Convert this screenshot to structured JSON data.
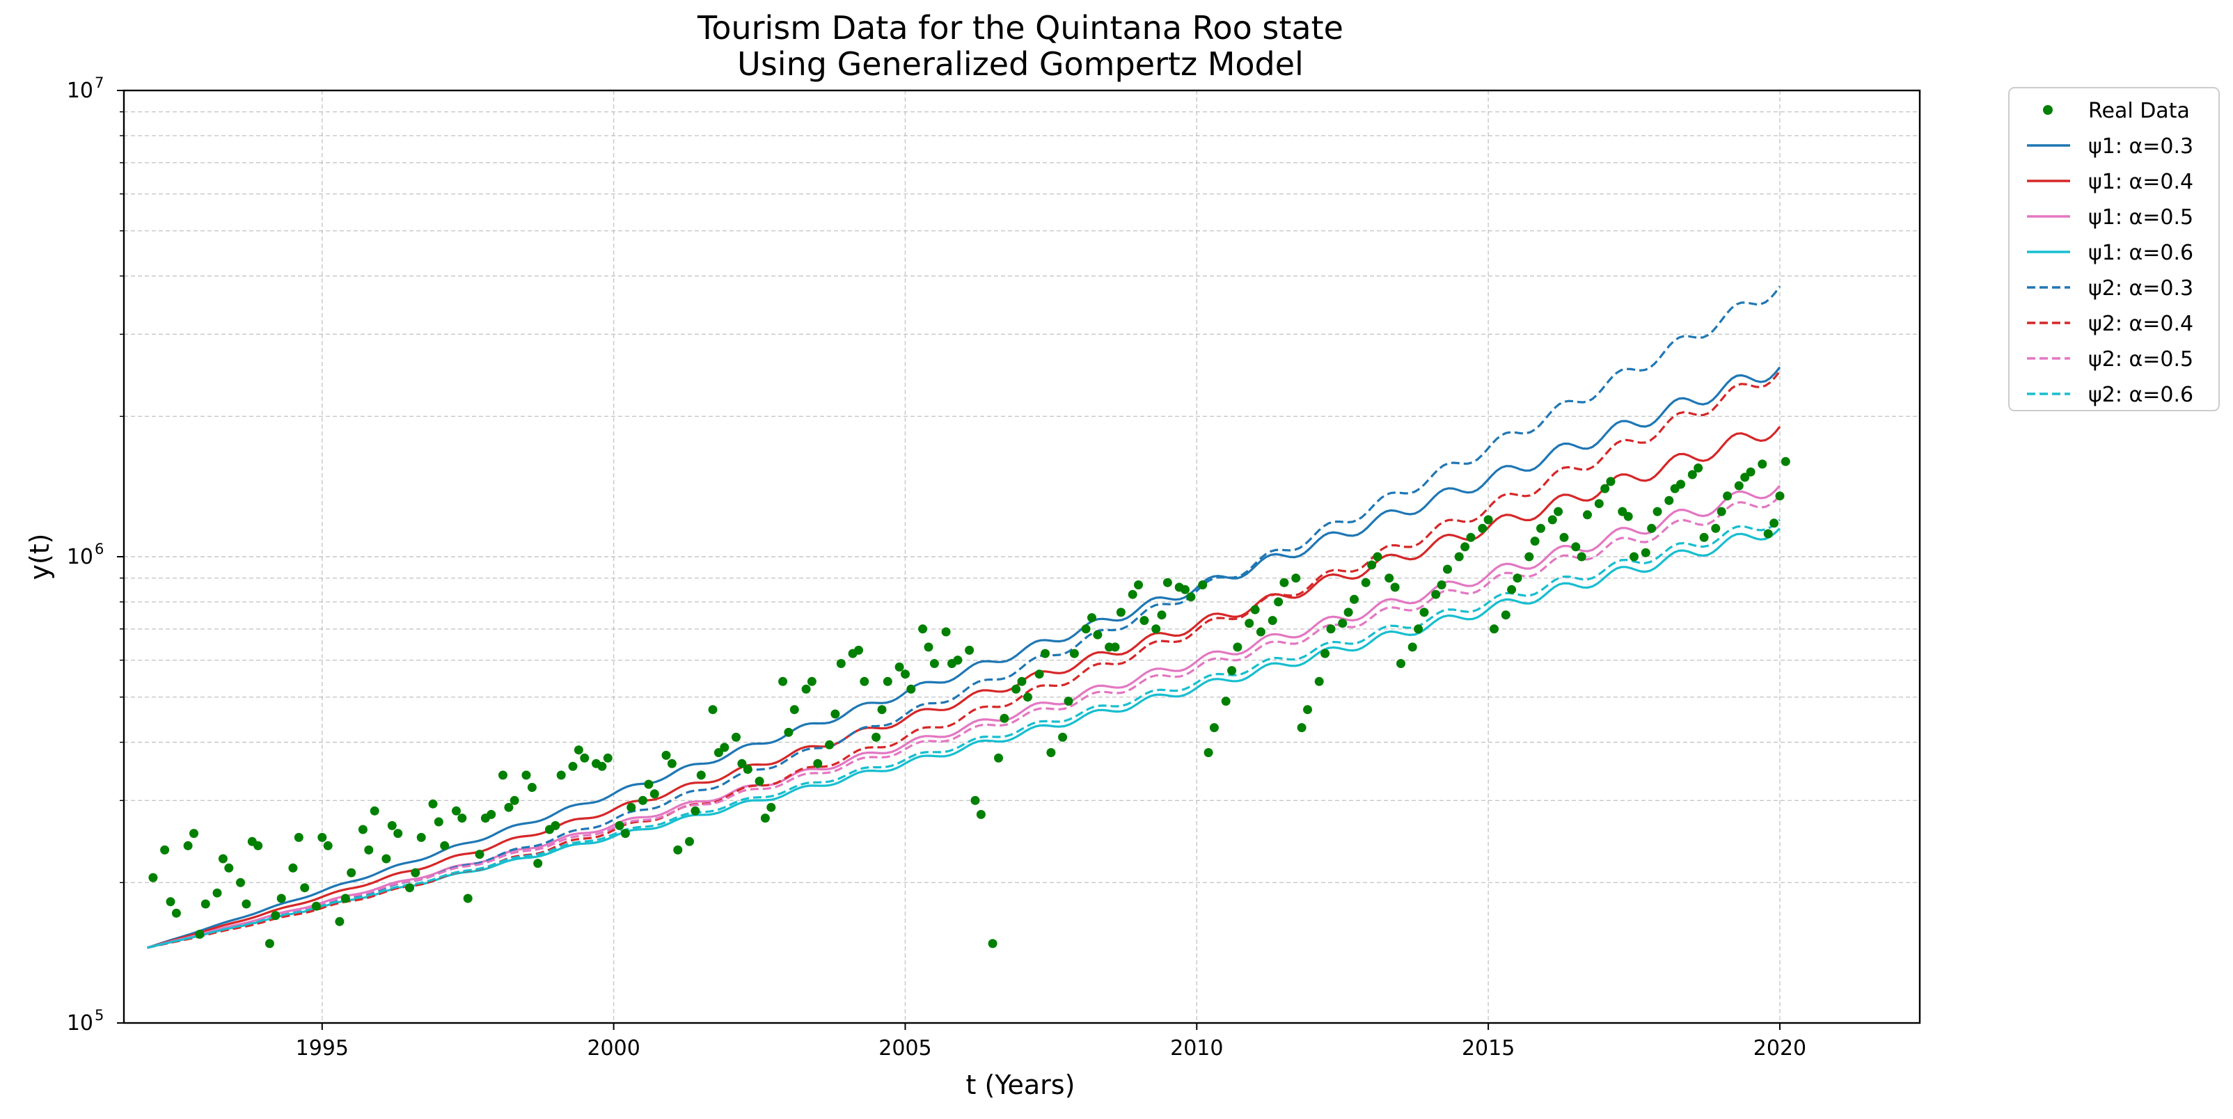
{
  "chart_data": {
    "type": "line",
    "title": "Tourism Data for the Quintana Roo state",
    "subtitle": "Using Generalized Gompertz Model",
    "xlabel": "t (Years)",
    "ylabel": "y(t)",
    "xlim": [
      1991.6,
      2022.4
    ],
    "ylim": [
      100000,
      10000000
    ],
    "yscale": "log",
    "grid": true,
    "legend_position": "outside-right-top",
    "x_ticks": [
      1995,
      2000,
      2005,
      2010,
      2015,
      2020
    ],
    "x_tick_labels": [
      "1995",
      "2000",
      "2005",
      "2010",
      "2015",
      "2020"
    ],
    "y_ticks": [
      {
        "value": 100000,
        "base": "10",
        "exp": "5"
      },
      {
        "value": 1000000,
        "base": "10",
        "exp": "6"
      },
      {
        "value": 10000000,
        "base": "10",
        "exp": "7"
      }
    ],
    "scatter": {
      "name": "Real Data",
      "color": "#008000",
      "points": [
        [
          1992.1,
          205000
        ],
        [
          1992.3,
          235000
        ],
        [
          1992.4,
          182000
        ],
        [
          1992.5,
          172000
        ],
        [
          1992.7,
          240000
        ],
        [
          1992.8,
          255000
        ],
        [
          1992.9,
          155000
        ],
        [
          1993.0,
          180000
        ],
        [
          1993.2,
          190000
        ],
        [
          1993.3,
          225000
        ],
        [
          1993.4,
          215000
        ],
        [
          1993.6,
          200000
        ],
        [
          1993.7,
          180000
        ],
        [
          1993.8,
          245000
        ],
        [
          1993.9,
          240000
        ],
        [
          1994.1,
          148000
        ],
        [
          1994.2,
          170000
        ],
        [
          1994.3,
          185000
        ],
        [
          1994.5,
          215000
        ],
        [
          1994.6,
          250000
        ],
        [
          1994.7,
          195000
        ],
        [
          1994.9,
          178000
        ],
        [
          1995.0,
          250000
        ],
        [
          1995.1,
          240000
        ],
        [
          1995.3,
          165000
        ],
        [
          1995.4,
          185000
        ],
        [
          1995.5,
          210000
        ],
        [
          1995.7,
          260000
        ],
        [
          1995.8,
          235000
        ],
        [
          1995.9,
          285000
        ],
        [
          1996.1,
          225000
        ],
        [
          1996.2,
          265000
        ],
        [
          1996.3,
          255000
        ],
        [
          1996.5,
          195000
        ],
        [
          1996.6,
          210000
        ],
        [
          1996.7,
          250000
        ],
        [
          1996.9,
          295000
        ],
        [
          1997.0,
          270000
        ],
        [
          1997.1,
          240000
        ],
        [
          1997.3,
          285000
        ],
        [
          1997.4,
          275000
        ],
        [
          1997.5,
          185000
        ],
        [
          1997.7,
          230000
        ],
        [
          1997.8,
          275000
        ],
        [
          1997.9,
          280000
        ],
        [
          1998.1,
          340000
        ],
        [
          1998.2,
          290000
        ],
        [
          1998.3,
          300000
        ],
        [
          1998.5,
          340000
        ],
        [
          1998.6,
          320000
        ],
        [
          1998.7,
          220000
        ],
        [
          1998.9,
          260000
        ],
        [
          1999.0,
          265000
        ],
        [
          1999.1,
          340000
        ],
        [
          1999.3,
          355000
        ],
        [
          1999.4,
          385000
        ],
        [
          1999.5,
          370000
        ],
        [
          1999.7,
          360000
        ],
        [
          1999.8,
          355000
        ],
        [
          1999.9,
          370000
        ],
        [
          2000.1,
          265000
        ],
        [
          2000.2,
          255000
        ],
        [
          2000.3,
          290000
        ],
        [
          2000.5,
          300000
        ],
        [
          2000.6,
          325000
        ],
        [
          2000.7,
          310000
        ],
        [
          2000.9,
          375000
        ],
        [
          2001.0,
          360000
        ],
        [
          2001.1,
          235000
        ],
        [
          2001.3,
          245000
        ],
        [
          2001.4,
          285000
        ],
        [
          2001.5,
          340000
        ],
        [
          2001.7,
          470000
        ],
        [
          2001.8,
          380000
        ],
        [
          2001.9,
          390000
        ],
        [
          2002.1,
          410000
        ],
        [
          2002.2,
          360000
        ],
        [
          2002.3,
          350000
        ],
        [
          2002.5,
          330000
        ],
        [
          2002.6,
          275000
        ],
        [
          2002.7,
          290000
        ],
        [
          2002.9,
          540000
        ],
        [
          2003.0,
          420000
        ],
        [
          2003.1,
          470000
        ],
        [
          2003.3,
          520000
        ],
        [
          2003.4,
          540000
        ],
        [
          2003.5,
          360000
        ],
        [
          2003.7,
          395000
        ],
        [
          2003.8,
          460000
        ],
        [
          2003.9,
          590000
        ],
        [
          2004.1,
          620000
        ],
        [
          2004.2,
          630000
        ],
        [
          2004.3,
          540000
        ],
        [
          2004.5,
          410000
        ],
        [
          2004.6,
          470000
        ],
        [
          2004.7,
          540000
        ],
        [
          2004.9,
          580000
        ],
        [
          2005.0,
          560000
        ],
        [
          2005.1,
          520000
        ],
        [
          2005.3,
          700000
        ],
        [
          2005.4,
          640000
        ],
        [
          2005.5,
          590000
        ],
        [
          2005.7,
          690000
        ],
        [
          2005.8,
          590000
        ],
        [
          2005.9,
          600000
        ],
        [
          2006.1,
          630000
        ],
        [
          2006.2,
          300000
        ],
        [
          2006.3,
          280000
        ],
        [
          2006.5,
          148000
        ],
        [
          2006.6,
          370000
        ],
        [
          2006.7,
          450000
        ],
        [
          2006.9,
          520000
        ],
        [
          2007.0,
          540000
        ],
        [
          2007.1,
          500000
        ],
        [
          2007.3,
          560000
        ],
        [
          2007.4,
          620000
        ],
        [
          2007.5,
          380000
        ],
        [
          2007.7,
          410000
        ],
        [
          2007.8,
          490000
        ],
        [
          2007.9,
          620000
        ],
        [
          2008.1,
          700000
        ],
        [
          2008.2,
          740000
        ],
        [
          2008.3,
          680000
        ],
        [
          2008.5,
          640000
        ],
        [
          2008.6,
          640000
        ],
        [
          2008.7,
          760000
        ],
        [
          2008.9,
          830000
        ],
        [
          2009.0,
          870000
        ],
        [
          2009.1,
          730000
        ],
        [
          2009.3,
          700000
        ],
        [
          2009.4,
          750000
        ],
        [
          2009.5,
          880000
        ],
        [
          2009.7,
          860000
        ],
        [
          2009.8,
          850000
        ],
        [
          2009.9,
          820000
        ],
        [
          2010.1,
          870000
        ],
        [
          2010.2,
          380000
        ],
        [
          2010.3,
          430000
        ],
        [
          2010.5,
          490000
        ],
        [
          2010.6,
          570000
        ],
        [
          2010.7,
          640000
        ],
        [
          2010.9,
          720000
        ],
        [
          2011.0,
          770000
        ],
        [
          2011.1,
          690000
        ],
        [
          2011.3,
          730000
        ],
        [
          2011.4,
          800000
        ],
        [
          2011.5,
          880000
        ],
        [
          2011.7,
          900000
        ],
        [
          2011.8,
          430000
        ],
        [
          2011.9,
          470000
        ],
        [
          2012.1,
          540000
        ],
        [
          2012.2,
          620000
        ],
        [
          2012.3,
          700000
        ],
        [
          2012.5,
          720000
        ],
        [
          2012.6,
          760000
        ],
        [
          2012.7,
          810000
        ],
        [
          2012.9,
          880000
        ],
        [
          2013.0,
          960000
        ],
        [
          2013.1,
          1000000
        ],
        [
          2013.3,
          900000
        ],
        [
          2013.4,
          860000
        ],
        [
          2013.5,
          590000
        ],
        [
          2013.7,
          640000
        ],
        [
          2013.8,
          700000
        ],
        [
          2013.9,
          760000
        ],
        [
          2014.1,
          830000
        ],
        [
          2014.2,
          870000
        ],
        [
          2014.3,
          940000
        ],
        [
          2014.5,
          1000000
        ],
        [
          2014.6,
          1050000
        ],
        [
          2014.7,
          1100000
        ],
        [
          2014.9,
          1150000
        ],
        [
          2015.0,
          1200000
        ],
        [
          2015.1,
          700000
        ],
        [
          2015.3,
          750000
        ],
        [
          2015.4,
          850000
        ],
        [
          2015.5,
          900000
        ],
        [
          2015.7,
          1000000
        ],
        [
          2015.8,
          1080000
        ],
        [
          2015.9,
          1150000
        ],
        [
          2016.1,
          1200000
        ],
        [
          2016.2,
          1250000
        ],
        [
          2016.3,
          1100000
        ],
        [
          2016.5,
          1050000
        ],
        [
          2016.6,
          1000000
        ],
        [
          2016.7,
          1230000
        ],
        [
          2016.9,
          1300000
        ],
        [
          2017.0,
          1400000
        ],
        [
          2017.1,
          1450000
        ],
        [
          2017.3,
          1250000
        ],
        [
          2017.4,
          1220000
        ],
        [
          2017.5,
          1000000
        ],
        [
          2017.7,
          1020000
        ],
        [
          2017.8,
          1150000
        ],
        [
          2017.9,
          1250000
        ],
        [
          2018.1,
          1320000
        ],
        [
          2018.2,
          1400000
        ],
        [
          2018.3,
          1430000
        ],
        [
          2018.5,
          1500000
        ],
        [
          2018.6,
          1550000
        ],
        [
          2018.7,
          1100000
        ],
        [
          2018.9,
          1150000
        ],
        [
          2019.0,
          1250000
        ],
        [
          2019.1,
          1350000
        ],
        [
          2019.3,
          1420000
        ],
        [
          2019.4,
          1480000
        ],
        [
          2019.5,
          1520000
        ],
        [
          2019.7,
          1580000
        ],
        [
          2019.8,
          1120000
        ],
        [
          2019.9,
          1180000
        ],
        [
          2020.0,
          1350000
        ],
        [
          2020.1,
          1600000
        ]
      ]
    },
    "series": [
      {
        "name": "ψ1: α=0.3",
        "color": "#1f77b4",
        "dash": "solid",
        "start": 145000,
        "end": 2550000,
        "amp": 0.018
      },
      {
        "name": "ψ1: α=0.4",
        "color": "#d62728",
        "dash": "solid",
        "start": 145000,
        "end": 1900000,
        "amp": 0.018
      },
      {
        "name": "ψ1: α=0.5",
        "color": "#e377c2",
        "dash": "solid",
        "start": 145000,
        "end": 1420000,
        "amp": 0.016
      },
      {
        "name": "ψ1: α=0.6",
        "color": "#17becf",
        "dash": "solid",
        "start": 145000,
        "end": 1150000,
        "amp": 0.014
      },
      {
        "name": "ψ2: α=0.3",
        "color": "#1f77b4",
        "dash": "dashed",
        "start": 145000,
        "end": 3800000,
        "amp": 0.016,
        "bend": 0.55
      },
      {
        "name": "ψ2: α=0.4",
        "color": "#d62728",
        "dash": "dashed",
        "start": 145000,
        "end": 2500000,
        "amp": 0.016,
        "bend": 0.6
      },
      {
        "name": "ψ2: α=0.5",
        "color": "#e377c2",
        "dash": "dashed",
        "start": 145000,
        "end": 1350000,
        "amp": 0.014
      },
      {
        "name": "ψ2: α=0.6",
        "color": "#17becf",
        "dash": "dashed",
        "start": 145000,
        "end": 1200000,
        "amp": 0.012
      }
    ],
    "x_range_series": [
      1992.0,
      2020.0
    ]
  }
}
